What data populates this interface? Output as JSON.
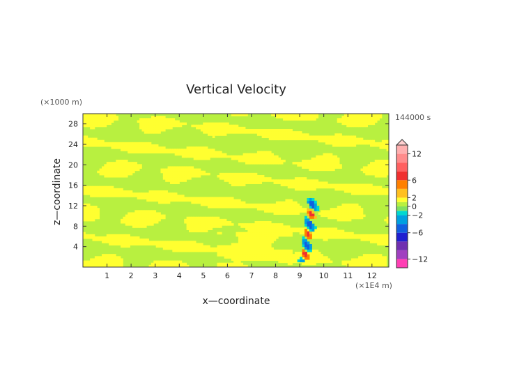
{
  "chart_data": {
    "type": "heatmap",
    "title": "Vertical Velocity",
    "xlabel": "x—coordinate",
    "ylabel": "z—coordinate",
    "x_unit": "(×1E4 m)",
    "y_unit": "(×1000 m)",
    "time_label": "144000 s",
    "xlim": [
      0,
      12.7
    ],
    "ylim": [
      0,
      30
    ],
    "x_ticks": [
      "1",
      "2",
      "3",
      "4",
      "5",
      "6",
      "7",
      "8",
      "9",
      "10",
      "11",
      "12"
    ],
    "y_ticks": [
      "4",
      "8",
      "12",
      "16",
      "20",
      "24",
      "28"
    ],
    "grid": false,
    "field": {
      "background_level": 0,
      "dominant_levels": [
        0,
        1
      ],
      "extreme_region": {
        "x": [
          8.8,
          9.8
        ],
        "z": [
          1,
          13
        ],
        "min": -6,
        "max": 8
      }
    },
    "colorbar": {
      "levels": [
        -14,
        -12,
        -10,
        -8,
        -6,
        -4,
        -2,
        -1,
        0,
        1,
        2,
        4,
        6,
        8,
        10,
        12,
        14
      ],
      "colors": [
        "#ff3fb4",
        "#a040c0",
        "#7030b0",
        "#2020d0",
        "#1060e0",
        "#00a0e0",
        "#00d8d0",
        "#80e060",
        "#b8f040",
        "#ffff30",
        "#ffc020",
        "#ff8000",
        "#f03030",
        "#ff6060",
        "#ff8c8c",
        "#ffb0b0"
      ],
      "tick_labels": [
        "12",
        "6",
        "2",
        "0",
        "−2",
        "−6",
        "−12"
      ],
      "tick_values": [
        12,
        6,
        2,
        0,
        -2,
        -6,
        -12
      ]
    }
  },
  "colors": {
    "green": "#b8f040",
    "yellow": "#ffff30",
    "axis": "#222222"
  }
}
